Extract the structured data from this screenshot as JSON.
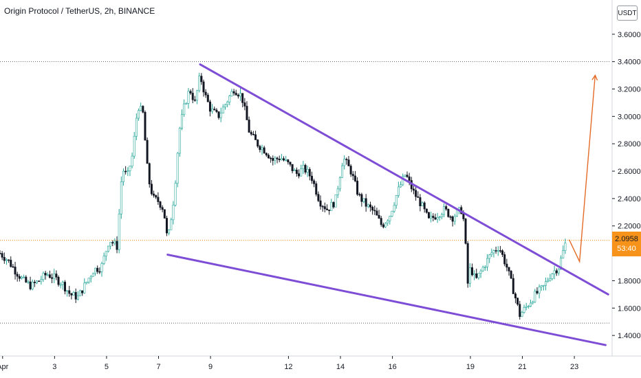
{
  "title": "Origin Protocol / TetherUS, 2h, BINANCE",
  "currency": "USDT",
  "last_price": "2.0958",
  "countdown": "53:40",
  "colors": {
    "up": "#26a69a",
    "down": "#131722",
    "trendline": "#7e4dd6",
    "arrow": "#e36b26",
    "price_line": "#f7931a",
    "guide": "#5d606b"
  },
  "chart_data": {
    "type": "candlestick",
    "title": "Origin Protocol / TetherUS, 2h, BINANCE",
    "ylim": [
      1.25,
      3.85
    ],
    "yticks": [
      "1.4000",
      "1.6000",
      "1.8000",
      "2.0000",
      "2.2000",
      "2.4000",
      "2.6000",
      "2.8000",
      "3.0000",
      "3.2000",
      "3.4000",
      "3.6000"
    ],
    "xticks": [
      "Apr",
      "3",
      "5",
      "7",
      "9",
      "12",
      "14",
      "16",
      "19",
      "21",
      "23"
    ],
    "xtick_pos": [
      1.0,
      3.0,
      5.0,
      7.0,
      9.0,
      12.0,
      14.0,
      16.0,
      19.0,
      21.0,
      23.0
    ],
    "xlim": [
      0.9,
      24.4
    ],
    "close_path": [
      [
        0.9,
        2.0
      ],
      [
        1.2,
        1.95
      ],
      [
        1.5,
        1.87
      ],
      [
        1.8,
        1.8
      ],
      [
        2.1,
        1.76
      ],
      [
        2.4,
        1.8
      ],
      [
        2.7,
        1.85
      ],
      [
        3.0,
        1.82
      ],
      [
        3.3,
        1.78
      ],
      [
        3.6,
        1.7
      ],
      [
        3.9,
        1.68
      ],
      [
        4.2,
        1.78
      ],
      [
        4.5,
        1.88
      ],
      [
        4.8,
        1.9
      ],
      [
        5.1,
        2.1
      ],
      [
        5.4,
        2.05
      ],
      [
        5.6,
        2.62
      ],
      [
        5.8,
        2.56
      ],
      [
        6.0,
        2.72
      ],
      [
        6.2,
        3.08
      ],
      [
        6.4,
        3.02
      ],
      [
        6.6,
        2.55
      ],
      [
        6.8,
        2.4
      ],
      [
        7.0,
        2.38
      ],
      [
        7.2,
        2.32
      ],
      [
        7.35,
        2.08
      ],
      [
        7.6,
        2.42
      ],
      [
        7.8,
        2.9
      ],
      [
        8.0,
        3.08
      ],
      [
        8.2,
        3.2
      ],
      [
        8.4,
        3.1
      ],
      [
        8.6,
        3.3
      ],
      [
        8.8,
        3.15
      ],
      [
        9.0,
        3.05
      ],
      [
        9.3,
        3.0
      ],
      [
        9.6,
        3.1
      ],
      [
        9.9,
        3.2
      ],
      [
        10.2,
        3.15
      ],
      [
        10.5,
        2.88
      ],
      [
        10.8,
        2.8
      ],
      [
        11.1,
        2.75
      ],
      [
        11.4,
        2.68
      ],
      [
        11.7,
        2.7
      ],
      [
        12.0,
        2.65
      ],
      [
        12.3,
        2.58
      ],
      [
        12.6,
        2.62
      ],
      [
        12.9,
        2.55
      ],
      [
        13.2,
        2.38
      ],
      [
        13.5,
        2.32
      ],
      [
        13.8,
        2.38
      ],
      [
        14.1,
        2.7
      ],
      [
        14.4,
        2.6
      ],
      [
        14.7,
        2.42
      ],
      [
        15.0,
        2.35
      ],
      [
        15.3,
        2.3
      ],
      [
        15.6,
        2.2
      ],
      [
        15.9,
        2.28
      ],
      [
        16.2,
        2.45
      ],
      [
        16.5,
        2.58
      ],
      [
        16.8,
        2.45
      ],
      [
        17.1,
        2.36
      ],
      [
        17.4,
        2.24
      ],
      [
        17.7,
        2.28
      ],
      [
        18.0,
        2.32
      ],
      [
        18.3,
        2.26
      ],
      [
        18.5,
        2.3
      ],
      [
        18.7,
        2.32
      ],
      [
        18.8,
        2.1
      ],
      [
        18.9,
        1.78
      ],
      [
        19.0,
        1.9
      ],
      [
        19.2,
        1.8
      ],
      [
        19.5,
        1.9
      ],
      [
        19.8,
        2.0
      ],
      [
        20.1,
        2.05
      ],
      [
        20.4,
        1.9
      ],
      [
        20.7,
        1.7
      ],
      [
        20.9,
        1.55
      ],
      [
        21.2,
        1.62
      ],
      [
        21.5,
        1.7
      ],
      [
        21.8,
        1.75
      ],
      [
        22.1,
        1.85
      ],
      [
        22.4,
        1.9
      ],
      [
        22.7,
        2.1
      ]
    ],
    "trendlines": [
      {
        "from": [
          8.6,
          3.38
        ],
        "to": [
          24.3,
          1.7
        ]
      },
      {
        "from": [
          7.35,
          1.99
        ],
        "to": [
          24.2,
          1.33
        ]
      }
    ],
    "hlines": [
      3.4,
      1.49
    ],
    "last_price": 2.0958,
    "arrow_path": [
      [
        22.8,
        2.1
      ],
      [
        23.2,
        1.94
      ],
      [
        23.8,
        3.3
      ]
    ]
  }
}
